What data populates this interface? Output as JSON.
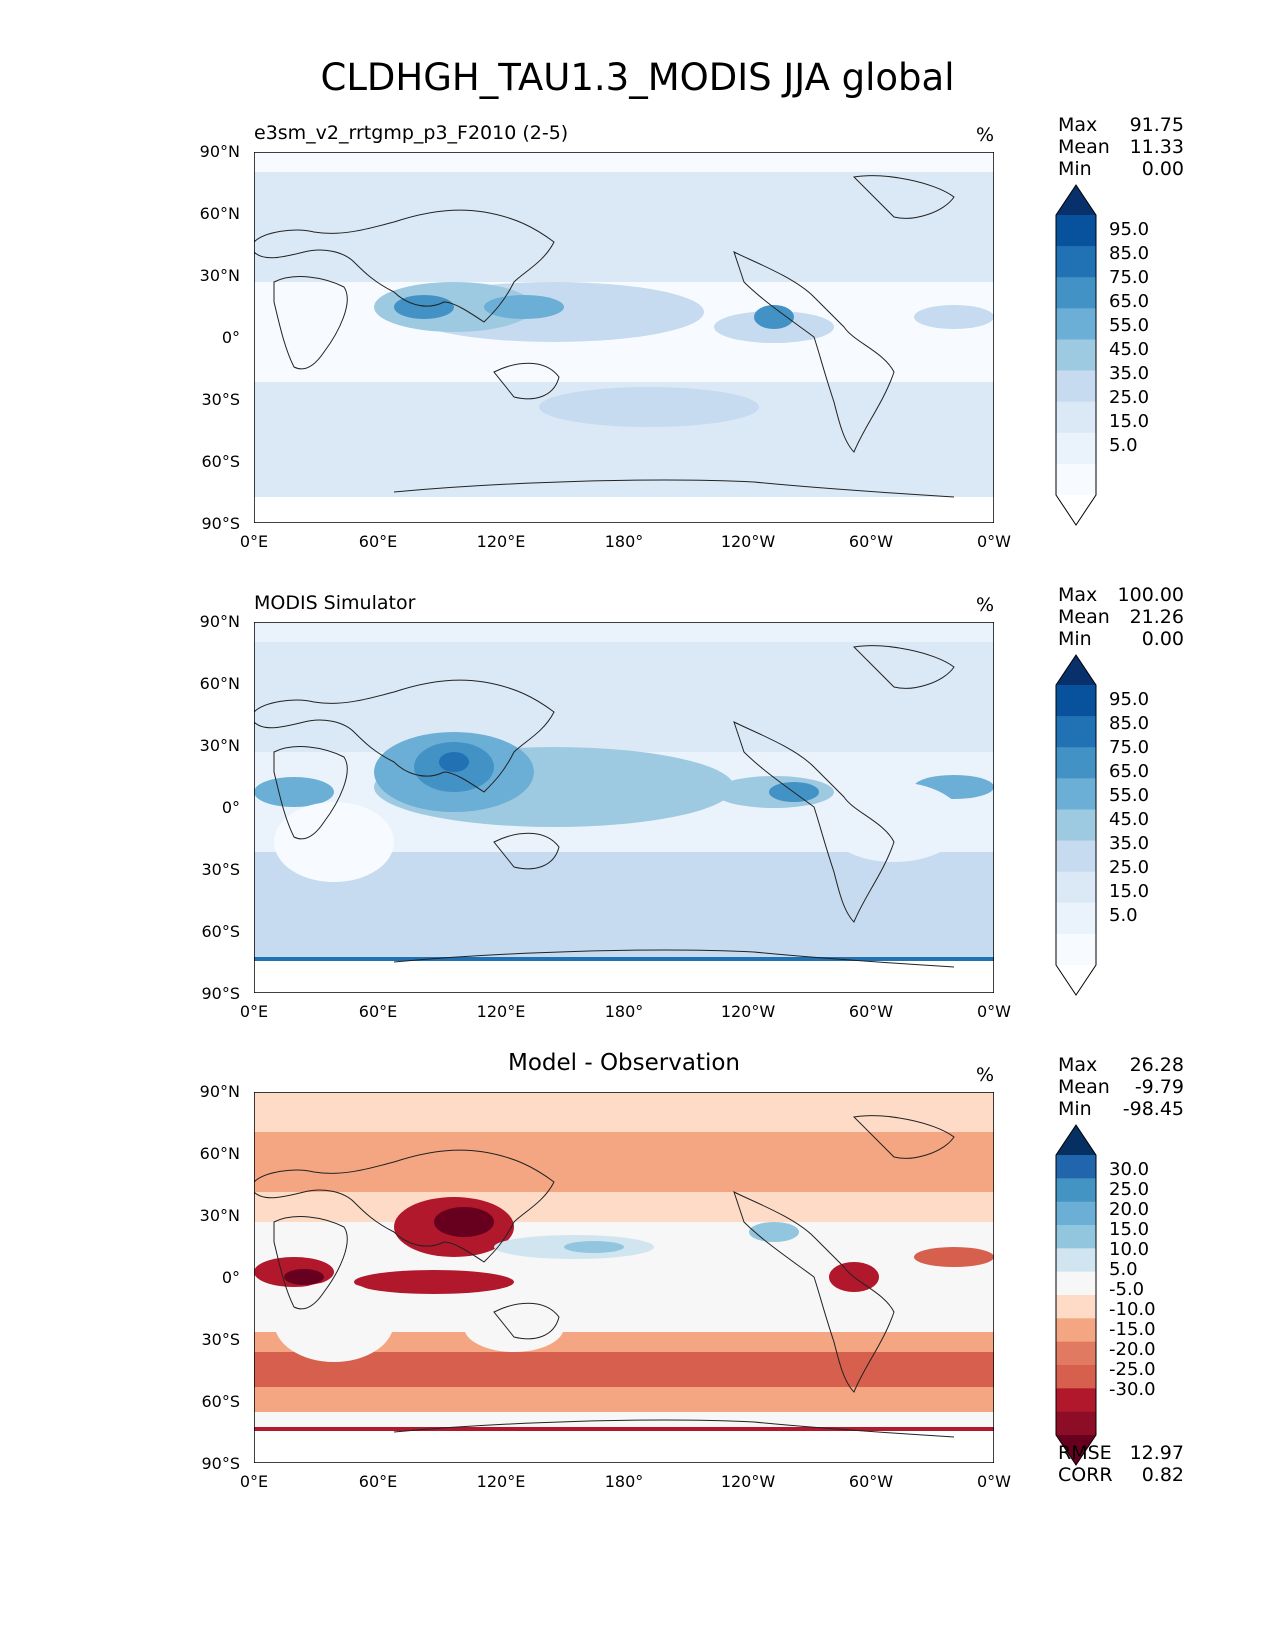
{
  "title": "CLDHGH_TAU1.3_MODIS JJA global",
  "axes": {
    "lat_labels": [
      "90°N",
      "60°N",
      "30°N",
      "0°",
      "30°S",
      "60°S",
      "90°S"
    ],
    "lon_labels": [
      "0°E",
      "60°E",
      "120°E",
      "180°",
      "120°W",
      "60°W",
      "0°W"
    ]
  },
  "panels": [
    {
      "title": "e3sm_v2_rrtgmp_p3_F2010 (2-5)",
      "units": "%",
      "stats": {
        "max_label": "Max",
        "max": "91.75",
        "mean_label": "Mean",
        "mean": "11.33",
        "min_label": "Min",
        "min": "0.00"
      },
      "colorbar": {
        "labels": [
          "95.0",
          "85.0",
          "75.0",
          "65.0",
          "55.0",
          "45.0",
          "35.0",
          "25.0",
          "15.0",
          "5.0"
        ],
        "colors": [
          "#08306b",
          "#08519c",
          "#2171b5",
          "#4292c6",
          "#6baed6",
          "#9ecae1",
          "#c6dbef",
          "#dbe9f6",
          "#eaf3fb",
          "#f7fbff",
          "#ffffff"
        ]
      }
    },
    {
      "title": "MODIS Simulator",
      "units": "%",
      "stats": {
        "max_label": "Max",
        "max": "100.00",
        "mean_label": "Mean",
        "mean": "21.26",
        "min_label": "Min",
        "min": "0.00"
      },
      "colorbar": {
        "labels": [
          "95.0",
          "85.0",
          "75.0",
          "65.0",
          "55.0",
          "45.0",
          "35.0",
          "25.0",
          "15.0",
          "5.0"
        ],
        "colors": [
          "#08306b",
          "#08519c",
          "#2171b5",
          "#4292c6",
          "#6baed6",
          "#9ecae1",
          "#c6dbef",
          "#dbe9f6",
          "#eaf3fb",
          "#f7fbff",
          "#ffffff"
        ]
      }
    },
    {
      "title": "Model - Observation",
      "units": "%",
      "stats": {
        "max_label": "Max",
        "max": "26.28",
        "mean_label": "Mean",
        "mean": "-9.79",
        "min_label": "Min",
        "min": "-98.45"
      },
      "colorbar": {
        "labels": [
          "30.0",
          "25.0",
          "20.0",
          "15.0",
          "10.0",
          "5.0",
          "-5.0",
          "-10.0",
          "-15.0",
          "-20.0",
          "-25.0",
          "-30.0"
        ],
        "colors": [
          "#053061",
          "#2166ac",
          "#4393c3",
          "#6baed6",
          "#92c5de",
          "#d1e5f0",
          "#f7f7f7",
          "#fddbc7",
          "#f4a582",
          "#e07b62",
          "#d6604d",
          "#b2182b",
          "#8c0d25",
          "#67001f"
        ]
      },
      "metrics": {
        "rmse_label": "RMSE",
        "rmse": "12.97",
        "corr_label": "CORR",
        "corr": "0.82"
      }
    }
  ]
}
